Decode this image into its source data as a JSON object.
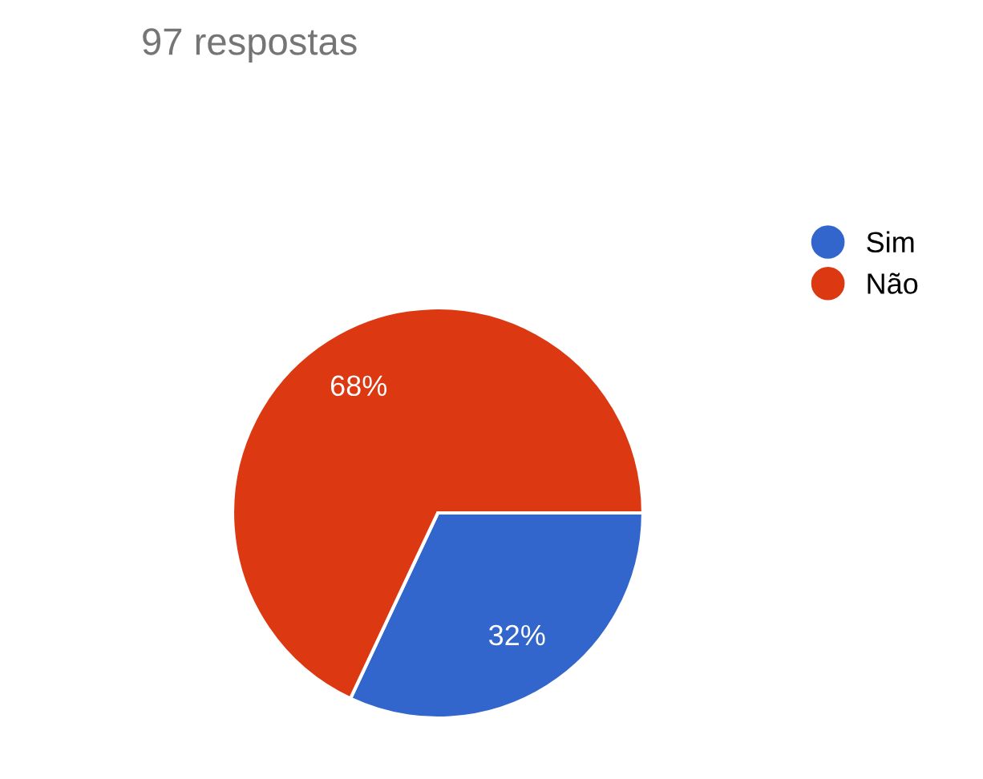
{
  "chart_data": {
    "type": "pie",
    "title": "97 respostas",
    "categories": [
      "Sim",
      "Não"
    ],
    "values": [
      32,
      68
    ],
    "colors": [
      "#3366cc",
      "#dc3912"
    ],
    "value_labels": [
      "32%",
      "68%"
    ],
    "legend": "top right"
  }
}
